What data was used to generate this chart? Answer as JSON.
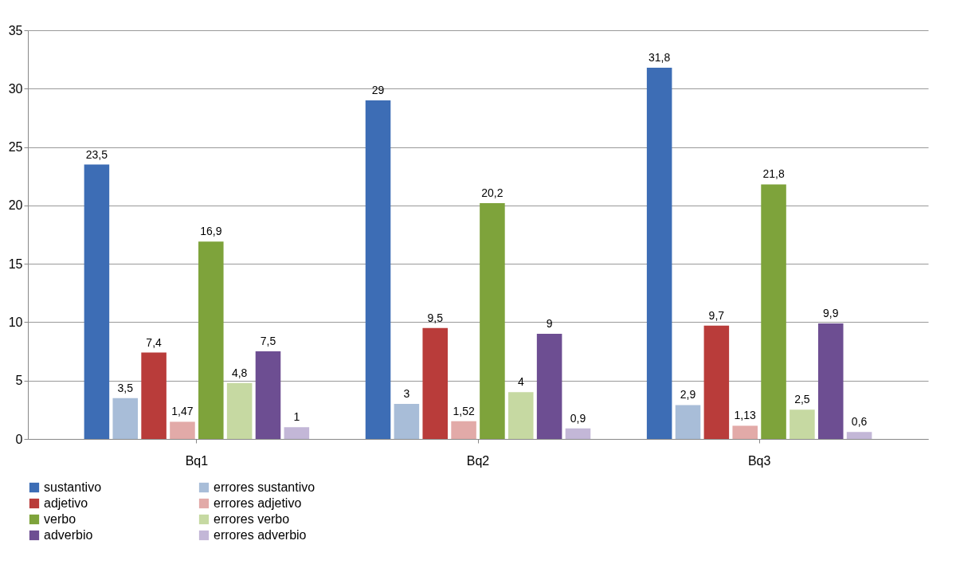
{
  "chart_data": {
    "type": "bar",
    "categories": [
      "Bq1",
      "Bq2",
      "Bq3"
    ],
    "series": [
      {
        "name": "sustantivo",
        "color": "#3d6db5",
        "values": [
          23.5,
          29,
          31.8
        ],
        "value_labels": [
          "23,5",
          "29",
          "31,8"
        ]
      },
      {
        "name": "errores sustantivo",
        "color": "#a8bdd8",
        "values": [
          3.5,
          3,
          2.9
        ],
        "value_labels": [
          "3,5",
          "3",
          "2,9"
        ]
      },
      {
        "name": "adjetivo",
        "color": "#b93c3a",
        "values": [
          7.4,
          9.5,
          9.7
        ],
        "value_labels": [
          "7,4",
          "9,5",
          "9,7"
        ]
      },
      {
        "name": "errores adjetivo",
        "color": "#e2aaa8",
        "values": [
          1.47,
          1.52,
          1.13
        ],
        "value_labels": [
          "1,47",
          "1,52",
          "1,13"
        ]
      },
      {
        "name": "verbo",
        "color": "#7ea33b",
        "values": [
          16.9,
          20.2,
          21.8
        ],
        "value_labels": [
          "16,9",
          "20,2",
          "21,8"
        ]
      },
      {
        "name": "errores verbo",
        "color": "#c6d9a2",
        "values": [
          4.8,
          4,
          2.5
        ],
        "value_labels": [
          "4,8",
          "4",
          "2,5"
        ]
      },
      {
        "name": "adverbio",
        "color": "#6d4e92",
        "values": [
          7.5,
          9,
          9.9
        ],
        "value_labels": [
          "7,5",
          "9",
          "9,9"
        ]
      },
      {
        "name": "errores adverbio",
        "color": "#c3b7d7",
        "values": [
          1,
          0.9,
          0.6
        ],
        "value_labels": [
          "1",
          "0,9",
          "0,6"
        ]
      }
    ],
    "ylim": [
      0,
      35
    ],
    "yticks": [
      0,
      5,
      10,
      15,
      20,
      25,
      30,
      35
    ],
    "grid": "y",
    "legend": "bottom"
  }
}
